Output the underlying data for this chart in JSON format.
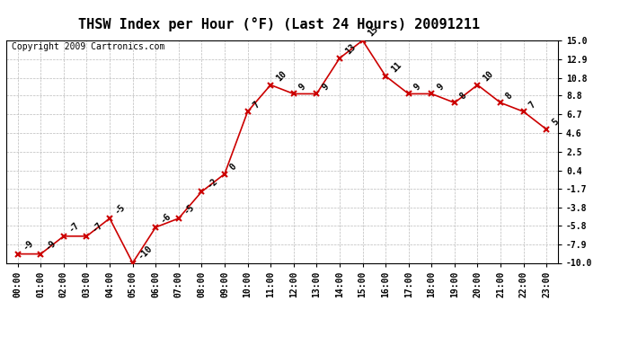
{
  "title": "THSW Index per Hour (°F) (Last 24 Hours) 20091211",
  "copyright": "Copyright 2009 Cartronics.com",
  "hours": [
    "00:00",
    "01:00",
    "02:00",
    "03:00",
    "04:00",
    "05:00",
    "06:00",
    "07:00",
    "08:00",
    "09:00",
    "10:00",
    "11:00",
    "12:00",
    "13:00",
    "14:00",
    "15:00",
    "16:00",
    "17:00",
    "18:00",
    "19:00",
    "20:00",
    "21:00",
    "22:00",
    "23:00"
  ],
  "values": [
    -9,
    -9,
    -7,
    -7,
    -5,
    -10,
    -6,
    -5,
    -2,
    0,
    7,
    10,
    9,
    9,
    13,
    15,
    11,
    9,
    9,
    8,
    10,
    8,
    7,
    5
  ],
  "yticks": [
    15.0,
    12.9,
    10.8,
    8.8,
    6.7,
    4.6,
    2.5,
    0.4,
    -1.7,
    -3.8,
    -5.8,
    -7.9,
    -10.0
  ],
  "ytick_labels": [
    "15.0",
    "12.9",
    "10.8",
    "8.8",
    "6.7",
    "4.6",
    "2.5",
    "0.4",
    "-1.7",
    "-3.8",
    "-5.8",
    "-7.9",
    "-10.0"
  ],
  "ylim": [
    -10.0,
    15.0
  ],
  "line_color": "#cc0000",
  "marker_color": "#cc0000",
  "bg_color": "#ffffff",
  "grid_color": "#bbbbbb",
  "title_fontsize": 11,
  "copyright_fontsize": 7,
  "tick_fontsize": 7,
  "annot_fontsize": 7
}
